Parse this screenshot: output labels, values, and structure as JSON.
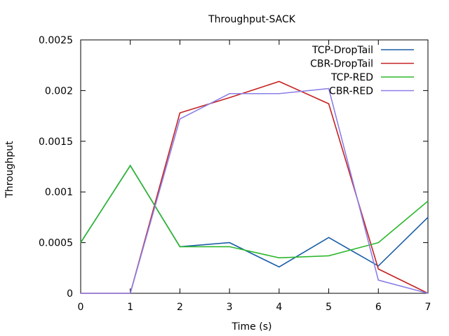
{
  "chart_data": {
    "type": "line",
    "title": "Throughput-SACK",
    "xlabel": "Time (s)",
    "ylabel": "Throughput",
    "xlim": [
      0,
      7
    ],
    "ylim": [
      0,
      0.0025
    ],
    "x_ticks": [
      0,
      1,
      2,
      3,
      4,
      5,
      6,
      7
    ],
    "x_tick_labels": [
      "0",
      "1",
      "2",
      "3",
      "4",
      "5",
      "6",
      "7"
    ],
    "y_ticks": [
      0,
      0.0005,
      0.001,
      0.0015,
      0.002,
      0.0025
    ],
    "y_tick_labels": [
      "0",
      "0.0005",
      "0.001",
      "0.0015",
      "0.002",
      "0.0025"
    ],
    "grid": false,
    "legend_position": "top-right",
    "x": [
      0,
      1,
      2,
      3,
      4,
      5,
      6,
      7
    ],
    "series": [
      {
        "name": "TCP-DropTail",
        "color": "#1a5ea6",
        "values": [
          0.0005,
          0.00126,
          0.00046,
          0.0005,
          0.00026,
          0.00055,
          0.00027,
          0.00075
        ]
      },
      {
        "name": "CBR-DropTail",
        "color": "#c42222",
        "values": [
          0,
          0,
          0.00178,
          0.00193,
          0.00209,
          0.00187,
          0.00024,
          0
        ]
      },
      {
        "name": "TCP-RED",
        "color": "#2db82d",
        "values": [
          0.0005,
          0.00126,
          0.00046,
          0.00046,
          0.00035,
          0.00037,
          0.0005,
          0.00091
        ]
      },
      {
        "name": "CBR-RED",
        "color": "#8a7fe8",
        "values": [
          0,
          0,
          0.00172,
          0.00197,
          0.00197,
          0.00202,
          0.00013,
          0
        ]
      }
    ]
  }
}
